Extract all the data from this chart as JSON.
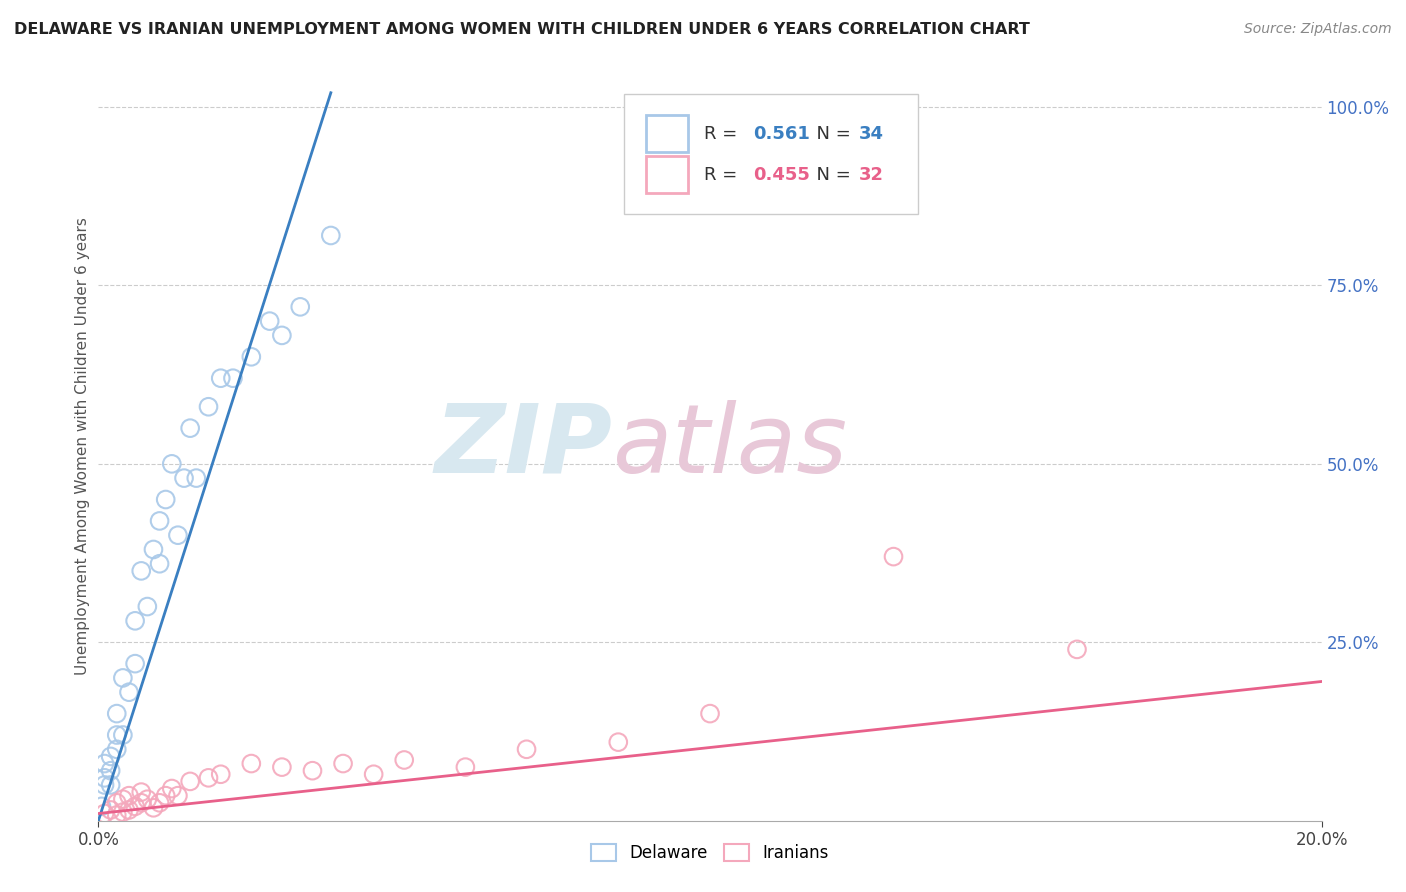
{
  "title": "DELAWARE VS IRANIAN UNEMPLOYMENT AMONG WOMEN WITH CHILDREN UNDER 6 YEARS CORRELATION CHART",
  "source": "Source: ZipAtlas.com",
  "ylabel": "Unemployment Among Women with Children Under 6 years",
  "delaware_R": "0.561",
  "delaware_N": "34",
  "iranians_R": "0.455",
  "iranians_N": "32",
  "delaware_color": "#a8c8e8",
  "iranians_color": "#f4a8bc",
  "delaware_line_color": "#3a7fc1",
  "iranians_line_color": "#e8608a",
  "right_tick_color": "#4472c4",
  "background_color": "#ffffff",
  "watermark_color": "#d8e8f0",
  "watermark_color2": "#e8c8d8",
  "xlim": [
    0,
    0.2
  ],
  "ylim": [
    0,
    1.05
  ],
  "delaware_x": [
    0.0005,
    0.001,
    0.001,
    0.001,
    0.002,
    0.002,
    0.002,
    0.003,
    0.003,
    0.003,
    0.004,
    0.004,
    0.005,
    0.006,
    0.006,
    0.007,
    0.008,
    0.009,
    0.01,
    0.01,
    0.011,
    0.012,
    0.013,
    0.014,
    0.015,
    0.016,
    0.018,
    0.02,
    0.022,
    0.025,
    0.028,
    0.03,
    0.033,
    0.038
  ],
  "delaware_y": [
    0.02,
    0.05,
    0.06,
    0.08,
    0.05,
    0.07,
    0.09,
    0.1,
    0.12,
    0.15,
    0.12,
    0.2,
    0.18,
    0.22,
    0.28,
    0.35,
    0.3,
    0.38,
    0.36,
    0.42,
    0.45,
    0.5,
    0.4,
    0.48,
    0.55,
    0.48,
    0.58,
    0.62,
    0.62,
    0.65,
    0.7,
    0.68,
    0.72,
    0.82
  ],
  "delaware_line_x0": 0.0,
  "delaware_line_y0": 0.0,
  "delaware_line_x1": 0.038,
  "delaware_line_y1": 1.02,
  "iranians_x": [
    0.001,
    0.002,
    0.003,
    0.003,
    0.004,
    0.004,
    0.005,
    0.005,
    0.006,
    0.007,
    0.007,
    0.008,
    0.009,
    0.01,
    0.011,
    0.012,
    0.013,
    0.015,
    0.018,
    0.02,
    0.025,
    0.03,
    0.035,
    0.04,
    0.045,
    0.05,
    0.06,
    0.07,
    0.085,
    0.1,
    0.13,
    0.16
  ],
  "iranians_y": [
    0.01,
    0.015,
    0.008,
    0.025,
    0.012,
    0.03,
    0.015,
    0.035,
    0.02,
    0.025,
    0.04,
    0.03,
    0.018,
    0.025,
    0.035,
    0.045,
    0.035,
    0.055,
    0.06,
    0.065,
    0.08,
    0.075,
    0.07,
    0.08,
    0.065,
    0.085,
    0.075,
    0.1,
    0.11,
    0.15,
    0.37,
    0.24
  ],
  "iranians_line_x0": 0.0,
  "iranians_line_y0": 0.01,
  "iranians_line_x1": 0.2,
  "iranians_line_y1": 0.195
}
